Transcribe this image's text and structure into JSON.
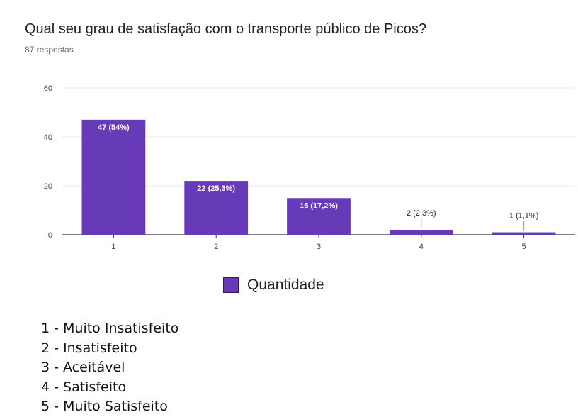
{
  "question": {
    "title": "Qual seu grau de satisfação com o transporte público de Picos?",
    "responses": "87 respostas"
  },
  "chart_data": {
    "type": "bar",
    "categories": [
      "1",
      "2",
      "3",
      "4",
      "5"
    ],
    "series": [
      {
        "name": "Quantidade",
        "values": [
          47,
          22,
          15,
          2,
          1
        ],
        "color": "#673ab7"
      }
    ],
    "data_labels": [
      "47 (54%)",
      "22 (25,3%)",
      "15 (17,2%)",
      "2 (2,3%)",
      "1 (1,1%)"
    ],
    "yticks": [
      0,
      20,
      40,
      60
    ],
    "ylim": [
      0,
      60
    ],
    "grid": true,
    "legend_position": "bottom"
  },
  "legend": {
    "label": "Quantidade"
  },
  "notes": [
    "1 - Muito Insatisfeito",
    "2 - Insatisfeito",
    "3 - Aceitável",
    "4 - Satisfeito",
    "5 - Muito Satisfeito"
  ]
}
